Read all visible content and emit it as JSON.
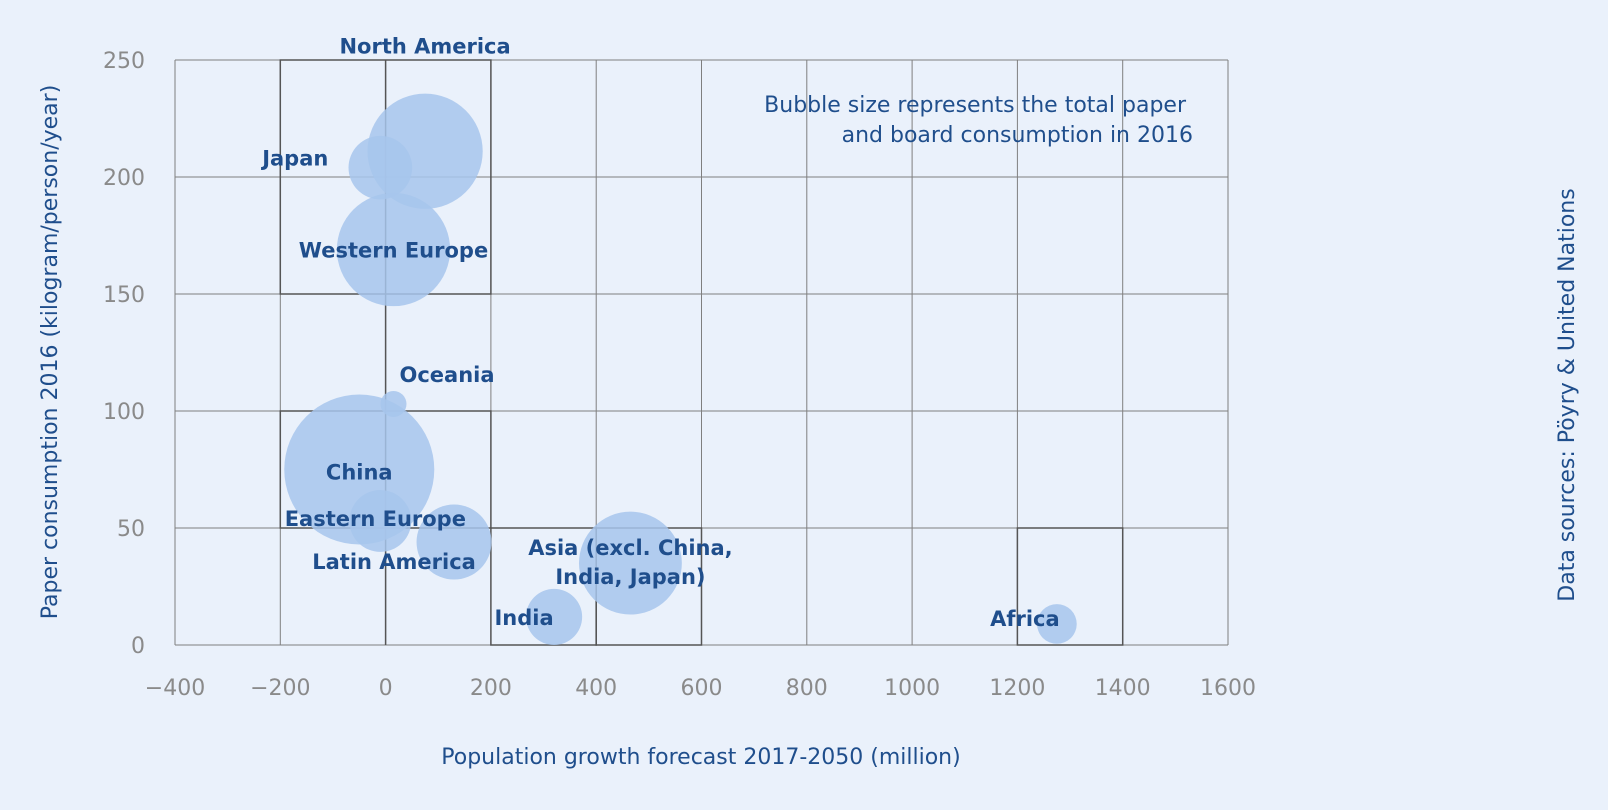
{
  "chart_data": {
    "type": "scatter",
    "xlabel": "Population growth forecast 2017-2050 (million)",
    "ylabel": "Paper consumption 2016 (kilogram/person/year)",
    "xlim": [
      -400,
      1600
    ],
    "ylim": [
      0,
      250
    ],
    "x_ticks": [
      "-400",
      "-200",
      "0",
      "200",
      "400",
      "600",
      "800",
      "1000",
      "1200",
      "1400",
      "1600"
    ],
    "y_ticks": [
      "0",
      "50",
      "100",
      "150",
      "200",
      "250"
    ],
    "grid": true,
    "annotation": [
      "Bubble size represents the total paper",
      "and board consumption in 2016"
    ],
    "source": "Data sources: Pöyry & United Nations",
    "bubble_color": "#a7c5ec",
    "label_color": "#1f4e8c",
    "points": [
      {
        "label": [
          "North America"
        ],
        "x": 75,
        "y": 211,
        "size": 59
      },
      {
        "label": [
          "Japan"
        ],
        "x": -10,
        "y": 204,
        "size": 18
      },
      {
        "label": [
          "Western Europe"
        ],
        "x": 15,
        "y": 169,
        "size": 57
      },
      {
        "label": [
          "Oceania"
        ],
        "x": 15,
        "y": 103,
        "size": 3
      },
      {
        "label": [
          "China"
        ],
        "x": -50,
        "y": 75,
        "size": 100
      },
      {
        "label": [
          "Eastern Europe"
        ],
        "x": -10,
        "y": 53,
        "size": 17
      },
      {
        "label": [
          "Latin America"
        ],
        "x": 130,
        "y": 44,
        "size": 25
      },
      {
        "label": [
          "Asia (excl. China,",
          "India, Japan)"
        ],
        "x": 465,
        "y": 35,
        "size": 47
      },
      {
        "label": [
          "India"
        ],
        "x": 320,
        "y": 12,
        "size": 14
      },
      {
        "label": [
          "Africa"
        ],
        "x": 1275,
        "y": 9,
        "size": 7
      }
    ]
  }
}
